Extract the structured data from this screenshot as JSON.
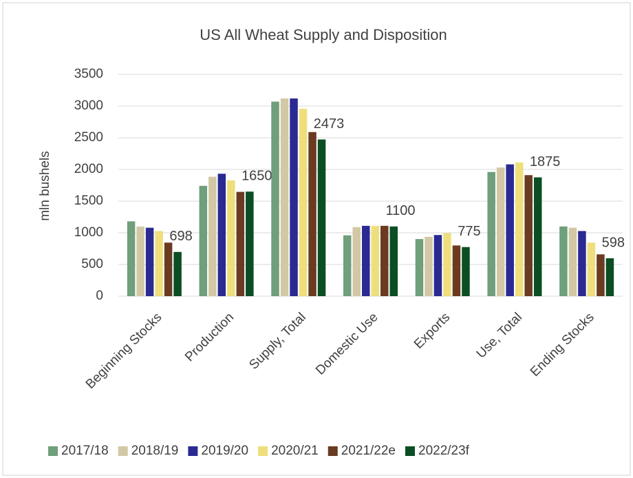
{
  "chart_data": {
    "type": "bar",
    "title": "US All Wheat Supply and Disposition",
    "y_label": "mln bushels",
    "categories": [
      "Beginning Stocks",
      "Production",
      "Supply, Total",
      "Domestic Use",
      "Exports",
      "Use, Total",
      "Ending Stocks"
    ],
    "series": [
      {
        "name": "2017/18",
        "color": "#6f9f7b",
        "values": [
          1181,
          1741,
          3070,
          960,
          901,
          1960,
          1100
        ]
      },
      {
        "name": "2018/19",
        "color": "#d2c8a5",
        "values": [
          1099,
          1885,
          3120,
          1090,
          937,
          2030,
          1080
        ]
      },
      {
        "name": "2019/20",
        "color": "#2a2a92",
        "values": [
          1080,
          1932,
          3120,
          1110,
          965,
          2080,
          1028
        ]
      },
      {
        "name": "2020/21",
        "color": "#eedf7c",
        "values": [
          1028,
          1828,
          2958,
          1110,
          994,
          2110,
          845
        ]
      },
      {
        "name": "2021/22e",
        "color": "#6a3b20",
        "values": [
          845,
          1646,
          2590,
          1110,
          800,
          1910,
          660
        ]
      },
      {
        "name": "2022/23f",
        "color": "#0b4e24",
        "values": [
          698,
          1650,
          2473,
          1100,
          775,
          1875,
          598
        ],
        "data_labels": true
      }
    ],
    "ylim": [
      0,
      3500
    ],
    "yticks": [
      0,
      500,
      1000,
      1500,
      2000,
      2500,
      3000,
      3500
    ],
    "grid": true,
    "legend": "bottom"
  }
}
